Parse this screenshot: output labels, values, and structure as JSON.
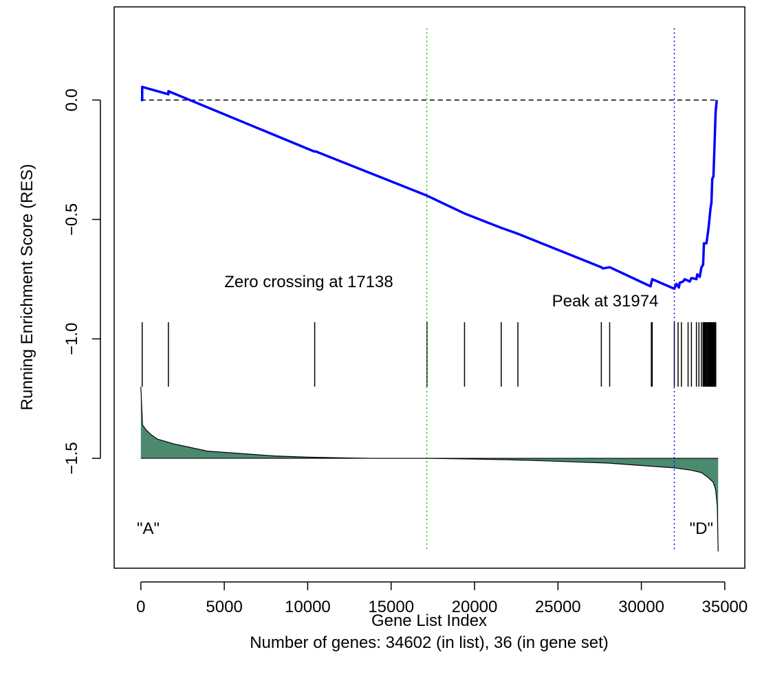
{
  "chart_data": {
    "type": "line",
    "xlabel": "Gene List Index",
    "subtitle": "Number of genes: 34602 (in list), 36 (in gene set)",
    "ylabel": "Running Enrichment Score (RES)",
    "xlim": [
      -1600,
      36200
    ],
    "ylim": [
      -1.96,
      0.39
    ],
    "x_ticks": [
      0,
      5000,
      10000,
      15000,
      20000,
      25000,
      30000,
      35000
    ],
    "x_tick_labels": [
      "0",
      "5000",
      "10000",
      "15000",
      "20000",
      "25000",
      "30000",
      "35000"
    ],
    "y_ticks": [
      0.0,
      -0.5,
      -1.0,
      -1.5
    ],
    "y_tick_labels": [
      "0.0",
      "−0.5",
      "−1.0",
      "−1.5"
    ],
    "grid": false,
    "n_genes": 34602,
    "gene_set_size": 36,
    "zero_crossing": 17138,
    "peak": 31974,
    "annotations": {
      "zero_crossing_label": "Zero crossing at 17138",
      "peak_label": "Peak at 31974",
      "left_label": "\"A\"",
      "right_label": "\"D\""
    },
    "baseline_y": 0.0,
    "running_score": {
      "name": "",
      "color": "#0000ff",
      "points": [
        [
          0,
          0.0
        ],
        [
          80,
          0.0
        ],
        [
          80,
          0.055
        ],
        [
          1650,
          0.024
        ],
        [
          1650,
          0.037
        ],
        [
          10380,
          -0.215
        ],
        [
          10480,
          -0.215
        ],
        [
          17138,
          -0.4
        ],
        [
          19400,
          -0.475
        ],
        [
          21600,
          -0.535
        ],
        [
          22600,
          -0.56
        ],
        [
          27600,
          -0.7
        ],
        [
          27700,
          -0.705
        ],
        [
          28100,
          -0.7
        ],
        [
          30550,
          -0.78
        ],
        [
          30650,
          -0.75
        ],
        [
          31974,
          -0.79
        ],
        [
          32100,
          -0.77
        ],
        [
          32250,
          -0.785
        ],
        [
          32300,
          -0.765
        ],
        [
          32500,
          -0.76
        ],
        [
          32600,
          -0.75
        ],
        [
          32900,
          -0.76
        ],
        [
          33000,
          -0.745
        ],
        [
          33300,
          -0.75
        ],
        [
          33350,
          -0.73
        ],
        [
          33500,
          -0.74
        ],
        [
          33600,
          -0.7
        ],
        [
          33700,
          -0.69
        ],
        [
          33750,
          -0.6
        ],
        [
          33900,
          -0.6
        ],
        [
          34000,
          -0.55
        ],
        [
          34050,
          -0.52
        ],
        [
          34150,
          -0.45
        ],
        [
          34200,
          -0.43
        ],
        [
          34250,
          -0.33
        ],
        [
          34320,
          -0.32
        ],
        [
          34380,
          -0.2
        ],
        [
          34450,
          -0.05
        ],
        [
          34520,
          0.0
        ]
      ]
    },
    "gene_set_hits": [
      80,
      1650,
      10420,
      17150,
      19400,
      21600,
      22600,
      27600,
      28100,
      30600,
      30650,
      31974,
      32200,
      32400,
      32800,
      33000,
      33300,
      33450,
      33600,
      33700,
      33760,
      33820,
      33880,
      33940,
      34000,
      34040,
      34080,
      34120,
      34160,
      34200,
      34240,
      34280,
      34320,
      34360,
      34420,
      34460
    ],
    "hit_line_range": [
      -0.93,
      -1.2
    ],
    "ranked_metric": {
      "color": "#4c8a6f",
      "baseline_y": -1.5,
      "points": [
        [
          0,
          -1.2
        ],
        [
          100,
          -1.36
        ],
        [
          300,
          -1.38
        ],
        [
          600,
          -1.4
        ],
        [
          1000,
          -1.42
        ],
        [
          2000,
          -1.44
        ],
        [
          4000,
          -1.47
        ],
        [
          6000,
          -1.48
        ],
        [
          8000,
          -1.49
        ],
        [
          10000,
          -1.495
        ],
        [
          12000,
          -1.498
        ],
        [
          14000,
          -1.5
        ],
        [
          17138,
          -1.5
        ],
        [
          20000,
          -1.503
        ],
        [
          22000,
          -1.506
        ],
        [
          24000,
          -1.51
        ],
        [
          26000,
          -1.515
        ],
        [
          28000,
          -1.52
        ],
        [
          30000,
          -1.53
        ],
        [
          31000,
          -1.535
        ],
        [
          32000,
          -1.54
        ],
        [
          33000,
          -1.55
        ],
        [
          33600,
          -1.56
        ],
        [
          34000,
          -1.58
        ],
        [
          34300,
          -1.6
        ],
        [
          34450,
          -1.63
        ],
        [
          34550,
          -1.7
        ],
        [
          34602,
          -1.89
        ]
      ]
    },
    "vertical_lines": [
      {
        "x": 17138,
        "color": "#00cc00",
        "y_range": [
          -1.88,
          0.3
        ]
      },
      {
        "x": 31974,
        "color": "#0000ff",
        "y_range": [
          -1.88,
          0.3
        ]
      }
    ]
  }
}
